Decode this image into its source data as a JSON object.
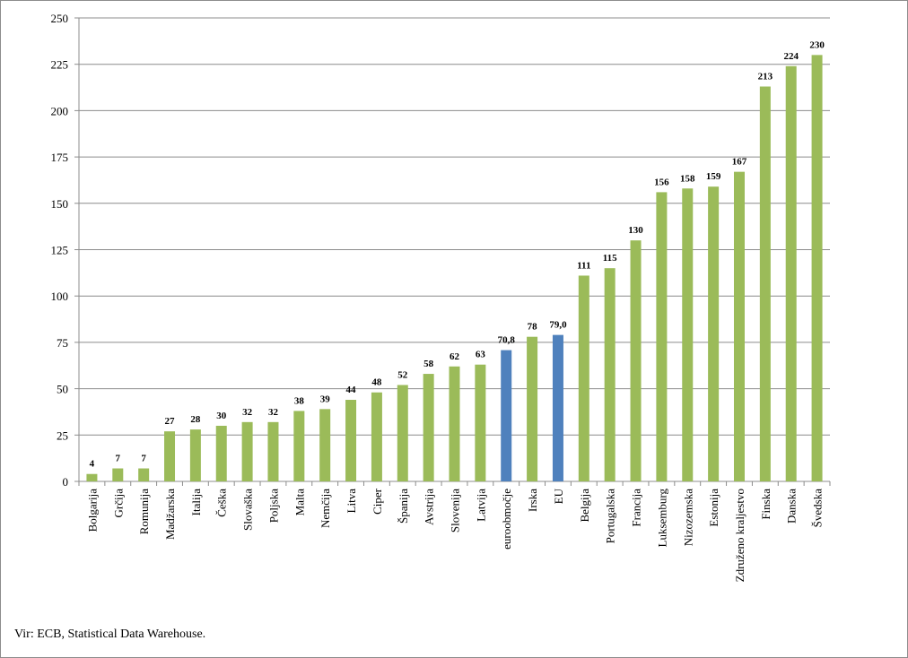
{
  "chart_data": {
    "type": "bar",
    "title": "",
    "xlabel": "",
    "ylabel": "",
    "ylim": [
      0,
      250
    ],
    "yticks": [
      0,
      25,
      50,
      75,
      100,
      125,
      150,
      175,
      200,
      225,
      250
    ],
    "grid": true,
    "legend": "none",
    "colors": {
      "default": "#9bbb59",
      "highlight": "#4f81bd",
      "grid": "#8c8c8c",
      "axis": "#8c8c8c"
    },
    "categories": [
      "Bolgarija",
      "Grčija",
      "Romunija",
      "Madžarska",
      "Italija",
      "Češka",
      "Slovaška",
      "Poljska",
      "Malta",
      "Nemčija",
      "Litva",
      "Ciper",
      "Španija",
      "Avstrija",
      "Slovenija",
      "Latvija",
      "euroobmočje",
      "Irska",
      "EU",
      "Belgija",
      "Portugalska",
      "Francija",
      "Luksemburg",
      "Nizozemska",
      "Estonija",
      "Združeno kraljestvo",
      "Finska",
      "Danska",
      "Švedska"
    ],
    "values": [
      4,
      7,
      7,
      27,
      28,
      30,
      32,
      32,
      38,
      39,
      44,
      48,
      52,
      58,
      62,
      63,
      70.8,
      78,
      79.0,
      111,
      115,
      130,
      156,
      158,
      159,
      167,
      213,
      224,
      230
    ],
    "data_labels": [
      "4",
      "7",
      "7",
      "27",
      "28",
      "30",
      "32",
      "32",
      "38",
      "39",
      "44",
      "48",
      "52",
      "58",
      "62",
      "63",
      "70,8",
      "78",
      "79,0",
      "111",
      "115",
      "130",
      "156",
      "158",
      "159",
      "167",
      "213",
      "224",
      "230"
    ],
    "highlighted_categories": [
      "euroobmočje",
      "EU"
    ]
  },
  "footer": {
    "source": "Vir: ECB, Statistical Data Warehouse."
  }
}
